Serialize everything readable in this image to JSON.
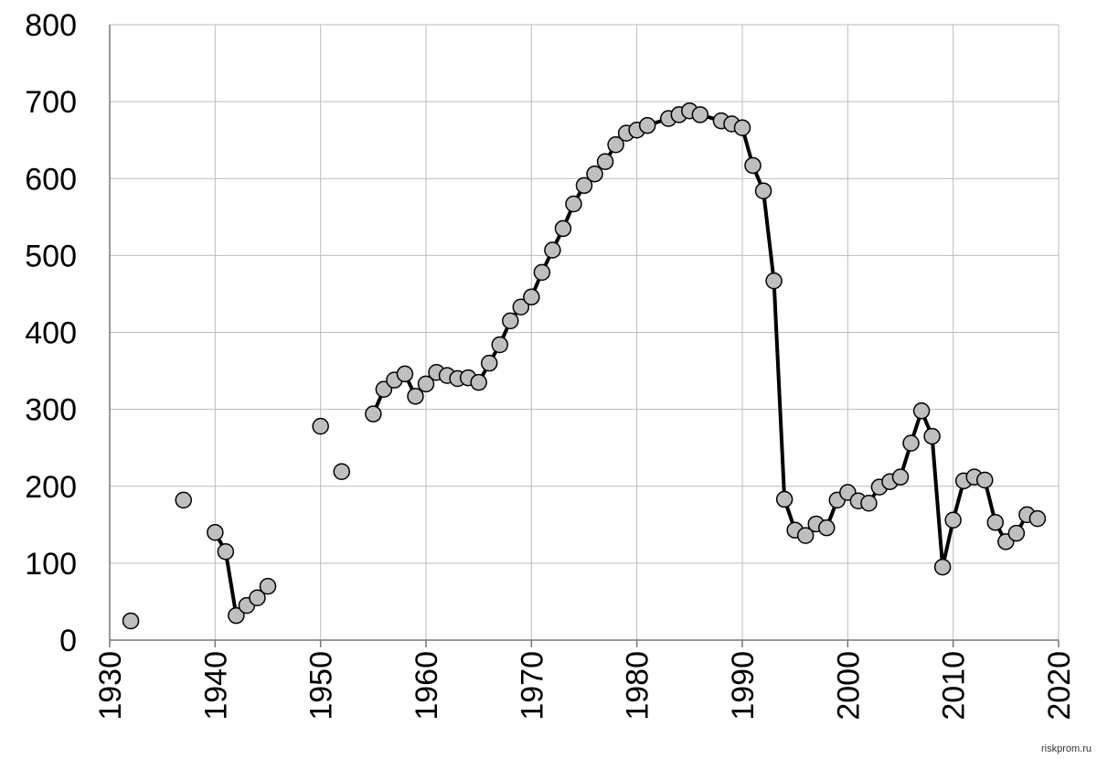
{
  "chart_data": {
    "type": "line",
    "x": [
      1932,
      1933,
      1937,
      1938,
      1940,
      1941,
      1942,
      1943,
      1944,
      1945,
      1946,
      1950,
      1951,
      1952,
      1953,
      1955,
      1956,
      1957,
      1958,
      1959,
      1960,
      1961,
      1962,
      1963,
      1964,
      1965,
      1966,
      1967,
      1968,
      1969,
      1970,
      1971,
      1972,
      1973,
      1974,
      1975,
      1976,
      1977,
      1978,
      1979,
      1980,
      1981,
      1983,
      1984,
      1985,
      1986,
      1988,
      1989,
      1990,
      1991,
      1992,
      1993,
      1994,
      1995,
      1996,
      1997,
      1998,
      1999,
      2000,
      2001,
      2002,
      2003,
      2004,
      2005,
      2006,
      2007,
      2008,
      2009,
      2010,
      2011,
      2012,
      2013,
      2014,
      2015,
      2016,
      2017,
      2018
    ],
    "values": [
      25,
      null,
      182,
      null,
      140,
      115,
      32,
      45,
      55,
      70,
      null,
      278,
      null,
      219,
      null,
      294,
      326,
      338,
      346,
      317,
      333,
      348,
      344,
      340,
      341,
      335,
      360,
      384,
      415,
      433,
      446,
      478,
      507,
      535,
      567,
      591,
      606,
      622,
      644,
      659,
      663,
      669,
      678,
      683,
      688,
      683,
      675,
      671,
      666,
      617,
      584,
      467,
      183,
      143,
      136,
      151,
      146,
      182,
      192,
      181,
      178,
      199,
      206,
      212,
      256,
      298,
      265,
      95,
      156,
      207,
      212,
      208,
      153,
      128,
      139,
      163,
      158
    ],
    "line_color": "#000000",
    "marker_color": "#bfbfbf",
    "xlim": [
      1930,
      2020
    ],
    "xticks": [
      1930,
      1940,
      1950,
      1960,
      1970,
      1980,
      1990,
      2000,
      2010,
      2020
    ],
    "ylim": [
      0,
      800
    ],
    "yticks": [
      0,
      100,
      200,
      300,
      400,
      500,
      600,
      700,
      800
    ],
    "grid": true,
    "annotation": "riskprom.ru"
  }
}
